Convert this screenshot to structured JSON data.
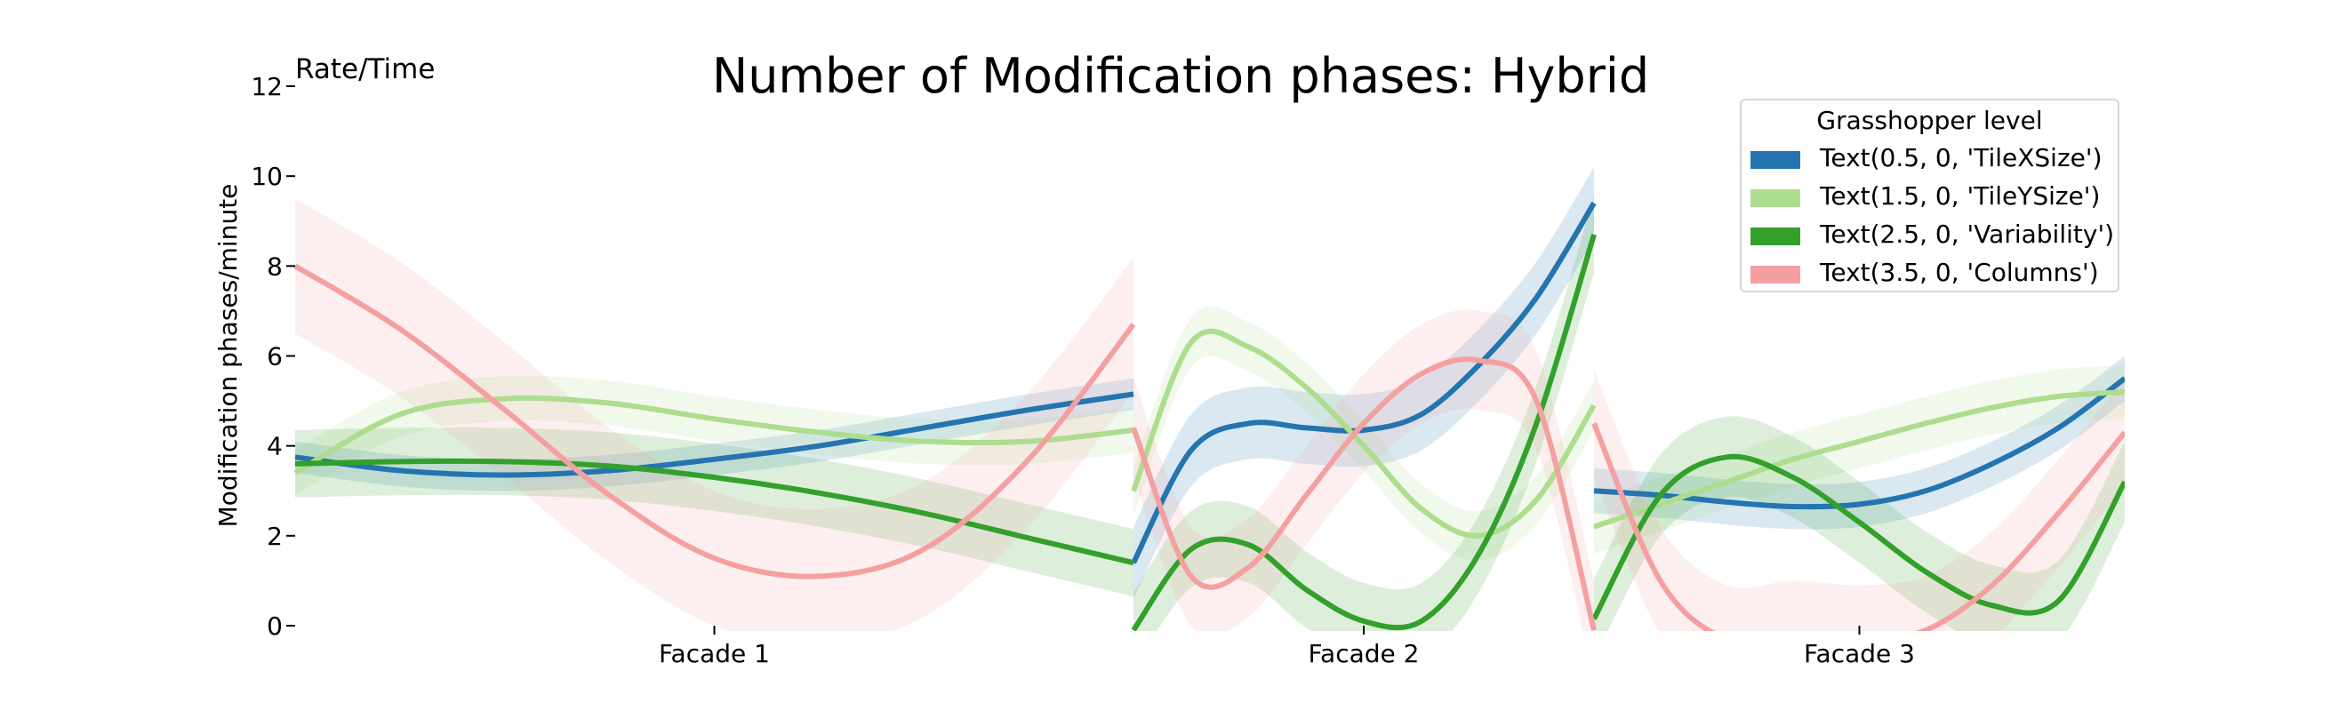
{
  "chart_data": {
    "type": "line",
    "title": "Number of Modification phases: Hybrid",
    "corner_label": "Rate/Time",
    "ylabel": "Modification phases/minute",
    "xlabel": "",
    "ylim": [
      0,
      12
    ],
    "yticks": [
      "0",
      "2",
      "4",
      "6",
      "8",
      "10",
      "12"
    ],
    "grid": false,
    "panels": [
      {
        "label": "Facade 1",
        "x": [
          0,
          0.125,
          0.25,
          0.375,
          0.5,
          0.625,
          0.75,
          0.875,
          1
        ]
      },
      {
        "label": "Facade 2",
        "x": [
          0,
          0.125,
          0.25,
          0.375,
          0.5,
          0.625,
          0.75,
          0.875,
          1
        ]
      },
      {
        "label": "Facade 3",
        "x": [
          0,
          0.125,
          0.25,
          0.375,
          0.5,
          0.625,
          0.75,
          0.875,
          1
        ]
      }
    ],
    "legend": {
      "title": "Grasshopper level",
      "position": "top-right",
      "entries": [
        {
          "label": "Text(0.5, 0, 'TileXSize')",
          "color": "#2474b0"
        },
        {
          "label": "Text(1.5, 0, 'TileYSize')",
          "color": "#addd8e"
        },
        {
          "label": "Text(2.5, 0, 'Variability')",
          "color": "#33a02c"
        },
        {
          "label": "Text(3.5, 0, 'Columns')",
          "color": "#f4a0a0"
        }
      ]
    },
    "series": [
      {
        "color": "#2474b0",
        "panels": [
          [
            3.75,
            3.45,
            3.35,
            3.45,
            3.7,
            4.0,
            4.4,
            4.8,
            5.15
          ],
          [
            1.4,
            3.9,
            4.5,
            4.4,
            4.35,
            4.7,
            5.8,
            7.3,
            9.4
          ],
          [
            3.0,
            2.9,
            2.75,
            2.65,
            2.7,
            3.0,
            3.6,
            4.4,
            5.5
          ]
        ],
        "band": [
          0.35,
          0.8,
          0.5
        ]
      },
      {
        "color": "#addd8e",
        "panels": [
          [
            3.4,
            4.7,
            5.05,
            4.95,
            4.6,
            4.3,
            4.1,
            4.1,
            4.35
          ],
          [
            3.0,
            6.3,
            6.2,
            5.3,
            4.0,
            2.6,
            2.0,
            2.8,
            4.9
          ],
          [
            2.2,
            2.7,
            3.2,
            3.7,
            4.1,
            4.5,
            4.85,
            5.1,
            5.2
          ]
        ],
        "band": [
          0.5,
          0.55,
          0.6
        ]
      },
      {
        "color": "#33a02c",
        "panels": [
          [
            3.6,
            3.65,
            3.65,
            3.55,
            3.3,
            2.95,
            2.5,
            1.95,
            1.4
          ],
          [
            -0.1,
            1.7,
            1.8,
            0.8,
            0.1,
            0.1,
            1.6,
            4.5,
            8.7
          ],
          [
            0.15,
            2.9,
            3.75,
            3.3,
            2.3,
            1.2,
            0.45,
            0.55,
            3.2
          ]
        ],
        "band": [
          0.75,
          0.85,
          0.9
        ]
      },
      {
        "color": "#f4a0a0",
        "panels": [
          [
            8.0,
            6.6,
            4.8,
            2.9,
            1.5,
            1.1,
            1.7,
            3.7,
            6.7
          ],
          [
            4.4,
            1.1,
            1.3,
            2.9,
            4.5,
            5.6,
            5.9,
            5.0,
            -0.1
          ],
          [
            4.5,
            1.0,
            -0.3,
            -0.2,
            -0.3,
            -0.1,
            0.9,
            2.5,
            4.3
          ]
        ],
        "band": [
          1.5,
          1.1,
          1.2
        ]
      }
    ]
  }
}
